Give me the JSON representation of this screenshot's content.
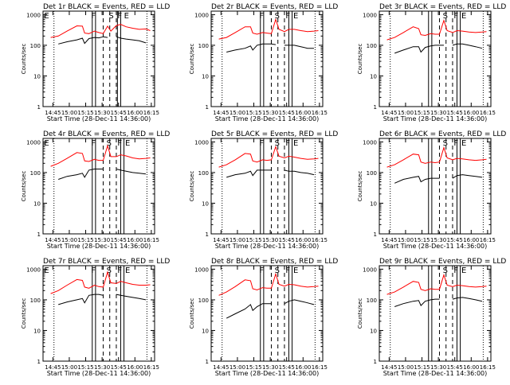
{
  "figure": {
    "x_axis_label": "Start Time (28-Dec-11 14:36:00)",
    "y_axis_label": "Counts/sec",
    "x_tick_labels": [
      "14:45",
      "15:00",
      "15:15",
      "15:30",
      "15:45",
      "16:00",
      "16:15"
    ],
    "y_tick_labels": [
      "1",
      "10",
      "100",
      "1000"
    ],
    "colors": {
      "events": "#000000",
      "lld": "#ff0000",
      "axes": "#000000",
      "background": "#ffffff"
    }
  },
  "chart_data": [
    {
      "type": "line",
      "title": "Det 1r BLACK = Events, RED = LLD",
      "xlim": [
        "14:36",
        "16:18"
      ],
      "ylim": [
        1,
        1300
      ],
      "yscale": "log",
      "dotted_markers": [
        "14:46",
        "16:11"
      ],
      "solid_markers": [
        "15:21",
        "15:24",
        "15:44",
        "15:47"
      ],
      "dashed_markers": [
        "15:31",
        "15:37",
        "15:43"
      ],
      "region_labels": [
        {
          "text": "E",
          "at": "14:37"
        },
        {
          "text": "F",
          "at": "15:20"
        },
        {
          "text": "S",
          "at": "15:36"
        },
        {
          "text": "F",
          "at": "15:44"
        },
        {
          "text": "E",
          "at": "15:50"
        }
      ],
      "x": [
        "14:43",
        "14:50",
        "14:58",
        "15:07",
        "15:12",
        "15:14",
        "15:18",
        "15:23",
        "15:27",
        "15:31",
        "15:35",
        "15:38",
        "15:43",
        "15:47",
        "15:52",
        "15:58",
        "16:04",
        "16:10",
        "16:14"
      ],
      "series": [
        {
          "name": "Events",
          "values": [
            null,
            110,
            130,
            150,
            170,
            115,
            165,
            180,
            175,
            190,
            180,
            null,
            190,
            170,
            160,
            150,
            140,
            120,
            null
          ]
        },
        {
          "name": "LLD",
          "values": [
            180,
            200,
            290,
            430,
            420,
            250,
            240,
            290,
            260,
            240,
            420,
            290,
            440,
            480,
            400,
            360,
            330,
            340,
            300
          ]
        }
      ]
    },
    {
      "type": "line",
      "title": "Det 2r BLACK = Events, RED = LLD",
      "xlim": [
        "14:36",
        "16:18"
      ],
      "ylim": [
        1,
        1300
      ],
      "yscale": "log",
      "dotted_markers": [
        "14:46",
        "16:11"
      ],
      "solid_markers": [
        "15:21",
        "15:24",
        "15:47",
        "15:50"
      ],
      "dashed_markers": [
        "15:31",
        "15:37",
        "15:43"
      ],
      "region_labels": [
        {
          "text": "F",
          "at": "15:20"
        },
        {
          "text": "S",
          "at": "15:34"
        },
        {
          "text": "F",
          "at": "15:44"
        },
        {
          "text": "E",
          "at": "15:51"
        }
      ],
      "x": [
        "14:43",
        "14:50",
        "14:58",
        "15:07",
        "15:12",
        "15:14",
        "15:18",
        "15:23",
        "15:27",
        "15:31",
        "15:35",
        "15:38",
        "15:43",
        "15:47",
        "15:52",
        "15:58",
        "16:04",
        "16:10",
        "16:14"
      ],
      "series": [
        {
          "name": "Events",
          "values": [
            null,
            60,
            70,
            80,
            95,
            70,
            100,
            110,
            110,
            110,
            105,
            null,
            100,
            100,
            100,
            90,
            80,
            80,
            null
          ]
        },
        {
          "name": "LLD",
          "values": [
            160,
            180,
            260,
            400,
            400,
            250,
            230,
            260,
            250,
            240,
            700,
            330,
            280,
            330,
            330,
            300,
            280,
            290,
            300
          ]
        }
      ]
    },
    {
      "type": "line",
      "title": "Det 3r BLACK = Events, RED = LLD",
      "xlim": [
        "14:36",
        "16:18"
      ],
      "ylim": [
        1,
        1300
      ],
      "yscale": "log",
      "dotted_markers": [
        "14:46",
        "16:11"
      ],
      "solid_markers": [
        "15:21",
        "15:24",
        "15:47",
        "15:50"
      ],
      "dashed_markers": [
        "15:31",
        "15:37",
        "15:43"
      ],
      "region_labels": [
        {
          "text": "S",
          "at": "15:34"
        },
        {
          "text": "F",
          "at": "15:44"
        },
        {
          "text": "E",
          "at": "15:51"
        }
      ],
      "x": [
        "14:43",
        "14:50",
        "14:58",
        "15:07",
        "15:12",
        "15:14",
        "15:18",
        "15:23",
        "15:27",
        "15:31",
        "15:35",
        "15:38",
        "15:43",
        "15:47",
        "15:52",
        "15:58",
        "16:04",
        "16:10",
        "16:14"
      ],
      "series": [
        {
          "name": "Events",
          "values": [
            null,
            55,
            70,
            90,
            90,
            60,
            85,
            95,
            100,
            100,
            100,
            null,
            100,
            110,
            110,
            100,
            90,
            80,
            null
          ]
        },
        {
          "name": "LLD",
          "values": [
            150,
            180,
            260,
            400,
            350,
            220,
            210,
            240,
            230,
            230,
            650,
            300,
            260,
            300,
            290,
            270,
            260,
            270,
            280
          ]
        }
      ]
    },
    {
      "type": "line",
      "title": "Det 4r BLACK = Events, RED = LLD",
      "xlim": [
        "14:36",
        "16:18"
      ],
      "ylim": [
        1,
        1300
      ],
      "yscale": "log",
      "dotted_markers": [
        "14:46",
        "16:11"
      ],
      "solid_markers": [
        "15:21",
        "15:24",
        "15:47",
        "15:50"
      ],
      "dashed_markers": [
        "15:31",
        "15:37",
        "15:43"
      ],
      "region_labels": [
        {
          "text": "E",
          "at": "14:37"
        },
        {
          "text": "F",
          "at": "15:20"
        },
        {
          "text": "S",
          "at": "15:34"
        },
        {
          "text": "F",
          "at": "15:44"
        },
        {
          "text": "E",
          "at": "15:51"
        }
      ],
      "x": [
        "14:43",
        "14:50",
        "14:58",
        "15:07",
        "15:12",
        "15:14",
        "15:18",
        "15:23",
        "15:27",
        "15:31",
        "15:35",
        "15:38",
        "15:43",
        "15:47",
        "15:52",
        "15:58",
        "16:04",
        "16:10",
        "16:14"
      ],
      "series": [
        {
          "name": "Events",
          "values": [
            null,
            60,
            75,
            85,
            95,
            70,
            120,
            130,
            130,
            130,
            null,
            null,
            130,
            120,
            110,
            100,
            95,
            90,
            null
          ]
        },
        {
          "name": "LLD",
          "values": [
            160,
            200,
            290,
            450,
            420,
            240,
            230,
            270,
            250,
            250,
            750,
            330,
            330,
            380,
            350,
            300,
            280,
            290,
            300
          ]
        }
      ]
    },
    {
      "type": "line",
      "title": "Det 5r BLACK = Events, RED = LLD",
      "xlim": [
        "14:36",
        "16:18"
      ],
      "ylim": [
        1,
        1300
      ],
      "yscale": "log",
      "dotted_markers": [
        "14:46",
        "16:11"
      ],
      "solid_markers": [
        "15:21",
        "15:24",
        "15:47",
        "15:50"
      ],
      "dashed_markers": [
        "15:31",
        "15:37",
        "15:43"
      ],
      "region_labels": [
        {
          "text": "F",
          "at": "15:20"
        },
        {
          "text": "S",
          "at": "15:34"
        },
        {
          "text": "F",
          "at": "15:44"
        },
        {
          "text": "E",
          "at": "15:51"
        }
      ],
      "x": [
        "14:43",
        "14:50",
        "14:58",
        "15:07",
        "15:12",
        "15:14",
        "15:18",
        "15:23",
        "15:27",
        "15:31",
        "15:35",
        "15:38",
        "15:43",
        "15:47",
        "15:52",
        "15:58",
        "16:04",
        "16:10",
        "16:14"
      ],
      "series": [
        {
          "name": "Events",
          "values": [
            null,
            70,
            85,
            95,
            110,
            80,
            120,
            120,
            120,
            120,
            null,
            null,
            120,
            110,
            110,
            100,
            95,
            85,
            null
          ]
        },
        {
          "name": "LLD",
          "values": [
            150,
            180,
            260,
            420,
            400,
            240,
            220,
            260,
            250,
            260,
            700,
            340,
            300,
            340,
            320,
            290,
            270,
            280,
            290
          ]
        }
      ]
    },
    {
      "type": "line",
      "title": "Det 6r BLACK = Events, RED = LLD",
      "xlim": [
        "14:36",
        "16:18"
      ],
      "ylim": [
        1,
        1300
      ],
      "yscale": "log",
      "dotted_markers": [
        "14:46",
        "16:11"
      ],
      "solid_markers": [
        "15:21",
        "15:24",
        "15:47",
        "15:50"
      ],
      "dashed_markers": [
        "15:31",
        "15:37",
        "15:43"
      ],
      "region_labels": [
        {
          "text": "S",
          "at": "15:34"
        },
        {
          "text": "F",
          "at": "15:44"
        },
        {
          "text": "E",
          "at": "15:51"
        }
      ],
      "x": [
        "14:43",
        "14:50",
        "14:58",
        "15:07",
        "15:12",
        "15:14",
        "15:18",
        "15:23",
        "15:27",
        "15:31",
        "15:35",
        "15:38",
        "15:43",
        "15:47",
        "15:52",
        "15:58",
        "16:04",
        "16:10",
        "16:14"
      ],
      "series": [
        {
          "name": "Events",
          "values": [
            null,
            45,
            60,
            70,
            75,
            50,
            60,
            65,
            65,
            65,
            null,
            null,
            65,
            80,
            85,
            80,
            75,
            70,
            null
          ]
        },
        {
          "name": "LLD",
          "values": [
            150,
            180,
            260,
            400,
            380,
            220,
            200,
            220,
            210,
            220,
            650,
            300,
            260,
            290,
            280,
            260,
            250,
            260,
            270
          ]
        }
      ]
    },
    {
      "type": "line",
      "title": "Det 7r BLACK = Events, RED = LLD",
      "xlim": [
        "14:36",
        "16:18"
      ],
      "ylim": [
        1,
        1300
      ],
      "yscale": "log",
      "dotted_markers": [
        "14:46",
        "16:11"
      ],
      "solid_markers": [
        "15:21",
        "15:24",
        "15:47",
        "15:50"
      ],
      "dashed_markers": [
        "15:31",
        "15:37",
        "15:43"
      ],
      "region_labels": [
        {
          "text": "E",
          "at": "14:37"
        },
        {
          "text": "F",
          "at": "15:20"
        },
        {
          "text": "S",
          "at": "15:34"
        },
        {
          "text": "F",
          "at": "15:44"
        },
        {
          "text": "E",
          "at": "15:51"
        }
      ],
      "x": [
        "14:43",
        "14:50",
        "14:58",
        "15:07",
        "15:12",
        "15:14",
        "15:18",
        "15:23",
        "15:27",
        "15:31",
        "15:35",
        "15:38",
        "15:43",
        "15:47",
        "15:52",
        "15:58",
        "16:04",
        "16:10",
        "16:14"
      ],
      "series": [
        {
          "name": "Events",
          "values": [
            null,
            70,
            85,
            100,
            110,
            80,
            140,
            150,
            150,
            140,
            null,
            null,
            150,
            140,
            130,
            120,
            110,
            100,
            null
          ]
        },
        {
          "name": "LLD",
          "values": [
            160,
            200,
            300,
            460,
            430,
            260,
            240,
            300,
            270,
            260,
            800,
            360,
            340,
            400,
            360,
            320,
            300,
            300,
            310
          ]
        }
      ]
    },
    {
      "type": "line",
      "title": "Det 8r BLACK = Events, RED = LLD",
      "xlim": [
        "14:36",
        "16:18"
      ],
      "ylim": [
        1,
        1300
      ],
      "yscale": "log",
      "dotted_markers": [
        "14:46",
        "16:11"
      ],
      "solid_markers": [
        "15:21",
        "15:24",
        "15:47",
        "15:50"
      ],
      "dashed_markers": [
        "15:31",
        "15:37",
        "15:43"
      ],
      "region_labels": [
        {
          "text": "F",
          "at": "15:20"
        },
        {
          "text": "S",
          "at": "15:34"
        },
        {
          "text": "F",
          "at": "15:44"
        },
        {
          "text": "E",
          "at": "15:51"
        }
      ],
      "x": [
        "14:43",
        "14:50",
        "14:58",
        "15:07",
        "15:12",
        "15:14",
        "15:18",
        "15:23",
        "15:27",
        "15:31",
        "15:35",
        "15:38",
        "15:43",
        "15:47",
        "15:52",
        "15:58",
        "16:04",
        "16:10",
        "16:14"
      ],
      "series": [
        {
          "name": "Events",
          "values": [
            null,
            25,
            35,
            50,
            70,
            45,
            60,
            75,
            75,
            75,
            null,
            null,
            75,
            90,
            100,
            90,
            80,
            70,
            null
          ]
        },
        {
          "name": "LLD",
          "values": [
            140,
            180,
            270,
            450,
            420,
            230,
            210,
            250,
            240,
            240,
            700,
            320,
            280,
            320,
            310,
            280,
            260,
            270,
            280
          ]
        }
      ]
    },
    {
      "type": "line",
      "title": "Det 9r BLACK = Events, RED = LLD",
      "xlim": [
        "14:36",
        "16:18"
      ],
      "ylim": [
        1,
        1300
      ],
      "yscale": "log",
      "dotted_markers": [
        "14:46",
        "16:11"
      ],
      "solid_markers": [
        "15:21",
        "15:24",
        "15:47",
        "15:50"
      ],
      "dashed_markers": [
        "15:31",
        "15:37",
        "15:43"
      ],
      "region_labels": [
        {
          "text": "S",
          "at": "15:34"
        },
        {
          "text": "F",
          "at": "15:44"
        },
        {
          "text": "E",
          "at": "15:51"
        }
      ],
      "x": [
        "14:43",
        "14:50",
        "14:58",
        "15:07",
        "15:12",
        "15:14",
        "15:18",
        "15:23",
        "15:27",
        "15:31",
        "15:35",
        "15:38",
        "15:43",
        "15:47",
        "15:52",
        "15:58",
        "16:04",
        "16:10",
        "16:14"
      ],
      "series": [
        {
          "name": "Events",
          "values": [
            null,
            60,
            75,
            90,
            95,
            65,
            90,
            100,
            105,
            105,
            null,
            null,
            105,
            115,
            120,
            110,
            100,
            90,
            null
          ]
        },
        {
          "name": "LLD",
          "values": [
            150,
            180,
            260,
            400,
            370,
            220,
            200,
            230,
            220,
            220,
            650,
            300,
            270,
            300,
            290,
            270,
            260,
            270,
            280
          ]
        }
      ]
    }
  ]
}
